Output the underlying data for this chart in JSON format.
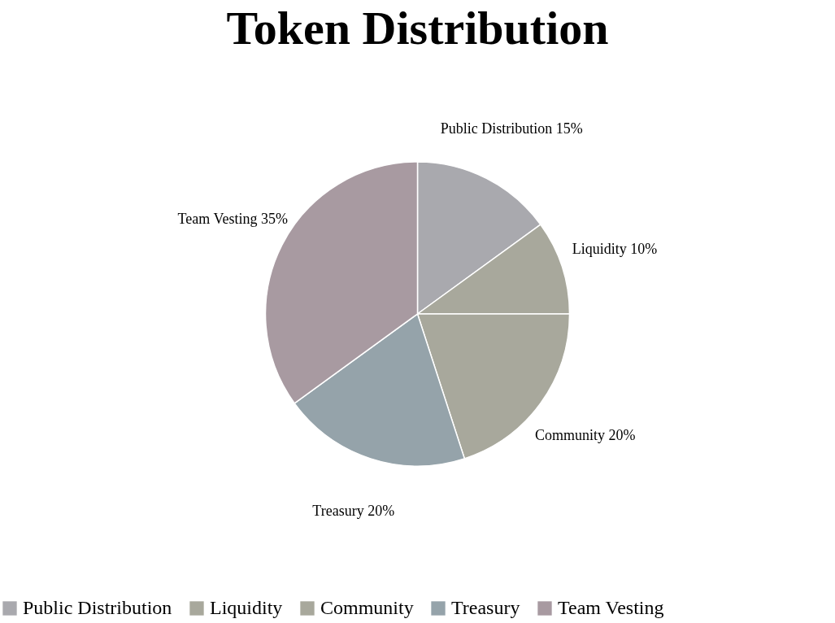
{
  "chart_data": {
    "type": "pie",
    "title": "Token Distribution",
    "categories": [
      "Public Distribution",
      "Liquidity",
      "Community",
      "Treasury",
      "Team Vesting"
    ],
    "values": [
      15,
      10,
      20,
      20,
      35
    ],
    "colors": [
      "#a9a9ae",
      "#a8a89c",
      "#a8a89c",
      "#95a3aa",
      "#a89aa1"
    ],
    "value_labels": [
      "Public Distribution 15%",
      "Liquidity 10%",
      "Community 20%",
      "Treasury 20%",
      "Team Vesting 35%"
    ],
    "legend": "bottom"
  }
}
